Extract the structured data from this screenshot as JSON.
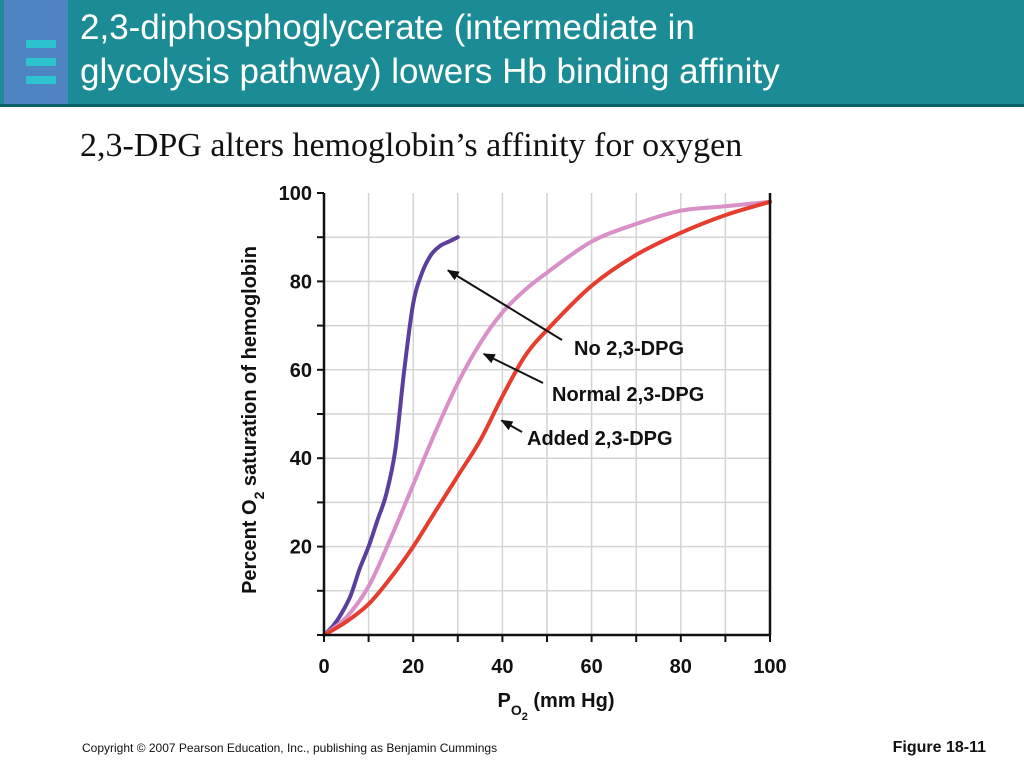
{
  "slide": {
    "title": "2,3-diphosphoglycerate (intermediate in\nglycolysis pathway) lowers Hb binding affinity",
    "subtitle": "2,3-DPG alters hemoglobin’s affinity for oxygen",
    "copyright": "Copyright © 2007 Pearson Education, Inc., publishing as Benjamin Cummings",
    "figure_label": "Figure 18-11",
    "logo_icon": "stacked-bars-logo-icon",
    "logo_colors": [
      "#2ec4cf",
      "#2ec4cf",
      "#2ec4cf"
    ]
  },
  "chart_data": {
    "type": "line",
    "title": "",
    "xlabel": {
      "main": "P",
      "subscript": "O",
      "sub_subscript": "2",
      "rest": " (mm Hg)"
    },
    "ylabel": {
      "before": "Percent O",
      "subscript": "2",
      "after": " saturation of hemoglobin"
    },
    "xlim": [
      0,
      100
    ],
    "ylim": [
      0,
      100
    ],
    "x_ticks": [
      0,
      20,
      40,
      60,
      80,
      100
    ],
    "y_ticks": [
      20,
      40,
      60,
      80,
      100
    ],
    "grid": true,
    "series": [
      {
        "name": "No 2,3-DPG",
        "color": "#5b3f9c",
        "x": [
          0,
          2,
          4,
          6,
          8,
          10,
          12,
          14,
          16,
          18,
          20,
          22,
          24,
          26,
          28,
          30
        ],
        "y": [
          0,
          2,
          5,
          9,
          15,
          20,
          26,
          32,
          42,
          60,
          75,
          82,
          86,
          88,
          89,
          90
        ]
      },
      {
        "name": "Normal 2,3-DPG",
        "color": "#d98fc8",
        "x": [
          0,
          5,
          10,
          15,
          20,
          25,
          30,
          35,
          40,
          45,
          50,
          60,
          70,
          80,
          90,
          100
        ],
        "y": [
          0,
          4,
          11,
          22,
          34,
          46,
          57,
          66,
          73,
          78,
          82,
          89,
          93,
          96,
          97,
          98
        ]
      },
      {
        "name": "Added 2,3-DPG",
        "color": "#e53d2e",
        "x": [
          0,
          5,
          10,
          15,
          20,
          25,
          30,
          35,
          40,
          45,
          50,
          60,
          70,
          80,
          90,
          100
        ],
        "y": [
          0,
          3,
          7,
          13,
          20,
          28,
          36,
          44,
          54,
          63,
          69,
          79,
          86,
          91,
          95,
          98
        ]
      }
    ],
    "annotations": [
      {
        "text": "No 2,3-DPG",
        "points_to_series": 0,
        "points_to_x": 27,
        "points_to_y": 83
      },
      {
        "text": "Normal 2,3-DPG",
        "points_to_series": 1,
        "points_to_x": 35,
        "points_to_y": 64
      },
      {
        "text": "Added 2,3-DPG",
        "points_to_series": 2,
        "points_to_x": 39,
        "points_to_y": 49
      }
    ]
  }
}
